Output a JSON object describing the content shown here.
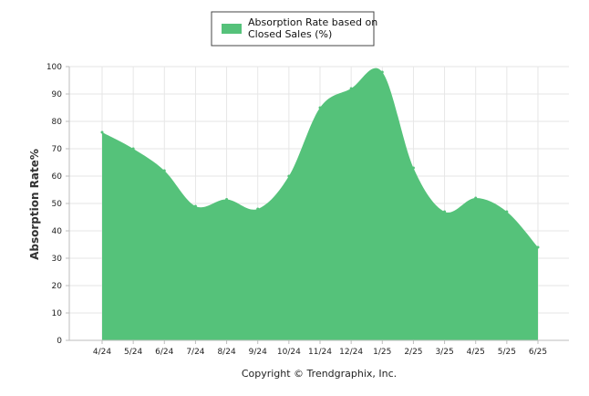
{
  "chart_data": {
    "type": "area",
    "categories": [
      "4/24",
      "5/24",
      "6/24",
      "7/24",
      "8/24",
      "9/24",
      "10/24",
      "11/24",
      "12/24",
      "1/25",
      "2/25",
      "3/25",
      "4/25",
      "5/25",
      "6/25"
    ],
    "series": [
      {
        "name": "Absorption Rate based on Closed Sales (%)",
        "values": [
          76,
          70,
          62,
          49,
          51.5,
          48,
          60,
          85,
          92,
          98,
          63,
          47,
          52,
          47,
          34
        ]
      }
    ],
    "yticks": [
      0,
      10,
      20,
      30,
      40,
      50,
      60,
      70,
      80,
      90,
      100
    ],
    "ylim": [
      0,
      100
    ],
    "ylabel": "Absorption Rate%",
    "xlabel": "",
    "title": "",
    "grid": true,
    "legend_position": "top-center",
    "colors": {
      "fill": "#55c27a",
      "grid": "#e6e6e6",
      "axis": "#bdbdbd"
    }
  },
  "legend": {
    "line1": "Absorption Rate based on",
    "line2": "Closed Sales (%)"
  },
  "footer": {
    "copyright": "Copyright © Trendgraphix, Inc."
  }
}
